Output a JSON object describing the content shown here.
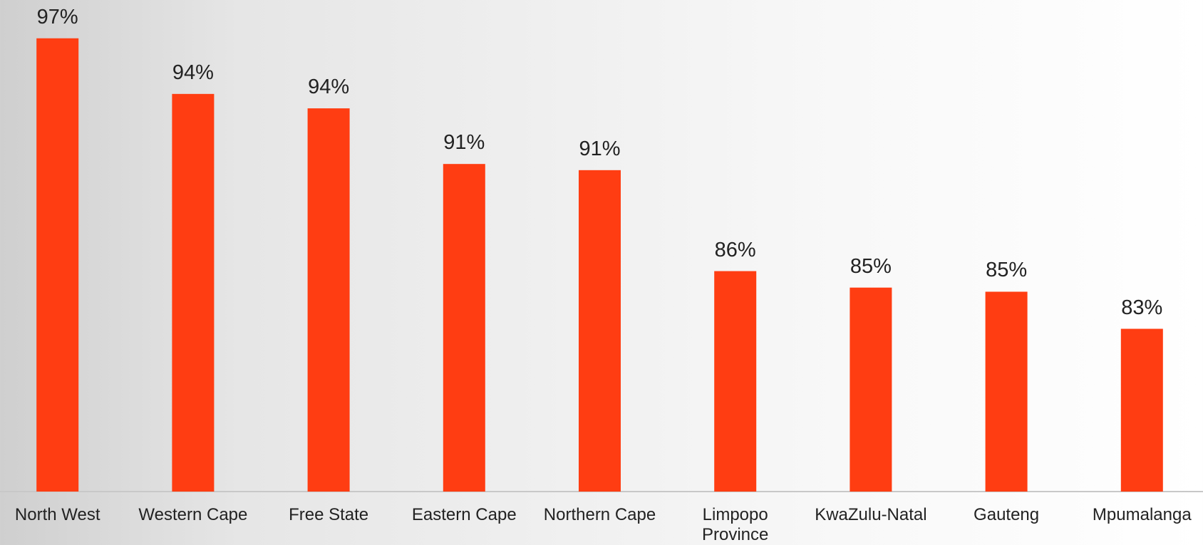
{
  "chart_data": {
    "type": "bar",
    "categories": [
      "North West",
      "Western Cape",
      "Free State",
      "Eastern Cape",
      "Northern Cape",
      "Limpopo Province",
      "KwaZulu-Natal",
      "Gauteng",
      "Mpumalanga"
    ],
    "values": [
      97.0,
      94.3,
      93.6,
      90.9,
      90.6,
      85.7,
      84.9,
      84.7,
      82.9
    ],
    "value_labels": [
      "97%",
      "94%",
      "94%",
      "91%",
      "91%",
      "86%",
      "85%",
      "85%",
      "83%"
    ],
    "color": "#ff3d12",
    "ylim": [
      75,
      100
    ]
  }
}
